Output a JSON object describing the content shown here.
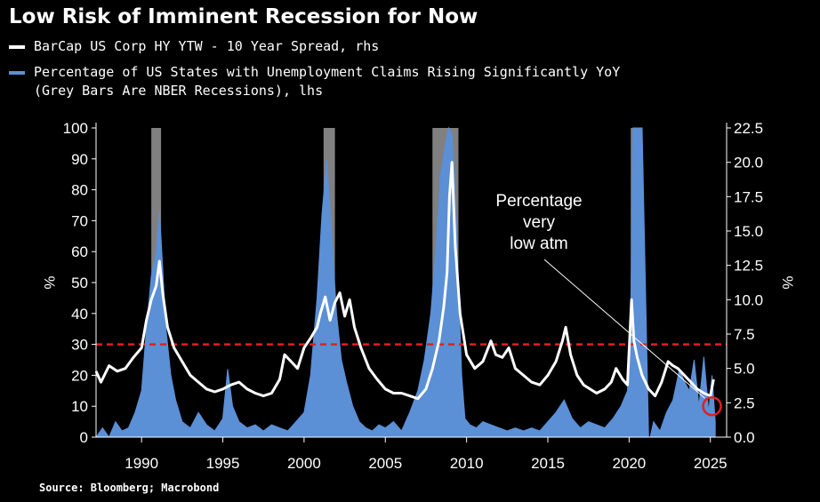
{
  "title": "Low Risk of Imminent Recession for Now",
  "legend": {
    "series1": "BarCap US Corp HY YTW - 10 Year Spread, rhs",
    "series2_line1": "Percentage of US States with Unemployment Claims Rising Significantly YoY",
    "series2_line2": "(Grey Bars Are NBER Recessions), lhs"
  },
  "source": "Source: Bloomberg; Macrobond",
  "colors": {
    "background": "#000000",
    "spread_line": "#ffffff",
    "states_area": "#5b8fd6",
    "recession_bars": "#808080",
    "threshold": "#e02020",
    "circle": "#e02020"
  },
  "chart_data": {
    "type": "area",
    "x_ticks": [
      "1990",
      "1995",
      "2000",
      "2005",
      "2010",
      "2015",
      "2020",
      "2025"
    ],
    "xlim": [
      1987.2,
      2026.0
    ],
    "left_axis": {
      "unit": "%",
      "ylim": [
        0,
        100
      ],
      "ticks": [
        "0",
        "10",
        "20",
        "30",
        "40",
        "50",
        "60",
        "70",
        "80",
        "90",
        "100"
      ]
    },
    "right_axis": {
      "unit": "%",
      "ylim": [
        0,
        22.5
      ],
      "ticks": [
        "0.0",
        "2.5",
        "5.0",
        "7.5",
        "10.0",
        "12.5",
        "15.0",
        "17.5",
        "20.0",
        "22.5"
      ]
    },
    "recessions": [
      [
        1990.6,
        1991.2
      ],
      [
        2001.2,
        2001.9
      ],
      [
        2007.9,
        2009.5
      ],
      [
        2020.1,
        2020.4
      ]
    ],
    "threshold_left": 30,
    "series": [
      {
        "name": "Percentage of US States with Unemployment Claims Rising Significantly YoY",
        "axis": "left",
        "style": "area",
        "x": [
          1987.2,
          1987.6,
          1988.0,
          1988.4,
          1988.8,
          1989.2,
          1989.6,
          1990.0,
          1990.3,
          1990.6,
          1990.9,
          1991.1,
          1991.3,
          1991.5,
          1991.8,
          1992.1,
          1992.5,
          1993.0,
          1993.5,
          1994.0,
          1994.5,
          1995.0,
          1995.3,
          1995.6,
          1996.0,
          1996.5,
          1997.0,
          1997.5,
          1998.0,
          1998.5,
          1999.0,
          1999.5,
          2000.0,
          2000.4,
          2000.8,
          2001.1,
          2001.4,
          2001.7,
          2002.0,
          2002.3,
          2002.6,
          2003.0,
          2003.4,
          2003.8,
          2004.2,
          2004.6,
          2005.0,
          2005.5,
          2006.0,
          2006.5,
          2007.0,
          2007.4,
          2007.8,
          2008.1,
          2008.4,
          2008.7,
          2008.9,
          2009.1,
          2009.3,
          2009.5,
          2009.7,
          2009.9,
          2010.2,
          2010.6,
          2011.0,
          2011.5,
          2012.0,
          2012.5,
          2013.0,
          2013.5,
          2014.0,
          2014.5,
          2015.0,
          2015.5,
          2016.0,
          2016.5,
          2017.0,
          2017.5,
          2018.0,
          2018.5,
          2019.0,
          2019.5,
          2019.9,
          2020.1,
          2020.25,
          2020.4,
          2020.8,
          2021.2,
          2021.3,
          2021.5,
          2021.9,
          2022.3,
          2022.7,
          2023.1,
          2023.4,
          2023.7,
          2024.0,
          2024.3,
          2024.6,
          2024.9,
          2025.1,
          2025.3
        ],
        "values": [
          0,
          3,
          0,
          5,
          2,
          3,
          8,
          15,
          35,
          52,
          60,
          73,
          55,
          35,
          20,
          12,
          5,
          3,
          8,
          4,
          2,
          6,
          22,
          10,
          5,
          3,
          4,
          2,
          4,
          3,
          2,
          5,
          8,
          20,
          45,
          72,
          90,
          65,
          40,
          25,
          18,
          10,
          5,
          3,
          2,
          4,
          3,
          5,
          2,
          8,
          15,
          25,
          40,
          60,
          85,
          95,
          100,
          98,
          80,
          50,
          20,
          6,
          4,
          3,
          5,
          4,
          3,
          2,
          3,
          2,
          3,
          2,
          5,
          8,
          12,
          6,
          3,
          5,
          4,
          3,
          6,
          10,
          15,
          40,
          100,
          100,
          100,
          0,
          0,
          5,
          2,
          8,
          12,
          22,
          18,
          15,
          25,
          10,
          26,
          8,
          20,
          5
        ]
      },
      {
        "name": "BarCap US Corp HY YTW - 10 Year Spread",
        "axis": "right",
        "style": "line",
        "x": [
          1987.2,
          1987.5,
          1988.0,
          1988.5,
          1989.0,
          1989.5,
          1990.0,
          1990.3,
          1990.6,
          1990.9,
          1991.1,
          1991.3,
          1991.6,
          1992.0,
          1992.5,
          1993.0,
          1993.5,
          1994.0,
          1994.5,
          1995.0,
          1995.5,
          1996.0,
          1996.5,
          1997.0,
          1997.5,
          1998.0,
          1998.5,
          1998.8,
          1999.2,
          1999.6,
          2000.0,
          2000.4,
          2000.8,
          2001.0,
          2001.3,
          2001.6,
          2001.9,
          2002.2,
          2002.5,
          2002.8,
          2003.1,
          2003.5,
          2004.0,
          2004.5,
          2005.0,
          2005.5,
          2006.0,
          2006.5,
          2007.0,
          2007.5,
          2007.9,
          2008.3,
          2008.6,
          2008.8,
          2008.95,
          2009.1,
          2009.3,
          2009.6,
          2010.0,
          2010.5,
          2011.0,
          2011.5,
          2011.8,
          2012.2,
          2012.6,
          2013.0,
          2013.5,
          2014.0,
          2014.5,
          2015.0,
          2015.5,
          2015.9,
          2016.1,
          2016.4,
          2016.8,
          2017.2,
          2017.6,
          2018.0,
          2018.5,
          2018.9,
          2019.2,
          2019.6,
          2019.9,
          2020.15,
          2020.3,
          2020.5,
          2020.8,
          2021.2,
          2021.6,
          2022.0,
          2022.4,
          2022.7,
          2023.0,
          2023.4,
          2023.8,
          2024.2,
          2024.6,
          2025.0,
          2025.2
        ],
        "values": [
          4.8,
          4.0,
          5.2,
          4.8,
          5.0,
          5.8,
          6.5,
          8.5,
          10.0,
          11.0,
          12.8,
          10.5,
          8.0,
          6.5,
          5.5,
          4.5,
          4.0,
          3.5,
          3.3,
          3.5,
          3.8,
          4.0,
          3.5,
          3.2,
          3.0,
          3.2,
          4.2,
          6.0,
          5.5,
          5.0,
          6.5,
          7.2,
          8.0,
          9.0,
          10.2,
          8.5,
          9.8,
          10.5,
          8.8,
          10.0,
          8.0,
          6.5,
          5.0,
          4.2,
          3.5,
          3.2,
          3.2,
          3.0,
          2.8,
          3.5,
          5.0,
          7.0,
          9.5,
          12.0,
          17.5,
          20.0,
          14.0,
          9.0,
          6.0,
          5.0,
          5.5,
          7.0,
          6.0,
          5.8,
          6.5,
          5.0,
          4.5,
          4.0,
          3.8,
          4.5,
          5.5,
          7.0,
          8.0,
          6.0,
          4.5,
          3.8,
          3.5,
          3.2,
          3.5,
          4.0,
          5.0,
          4.2,
          3.8,
          10.0,
          7.0,
          5.8,
          4.5,
          3.5,
          3.0,
          4.0,
          5.5,
          5.2,
          5.0,
          4.5,
          4.0,
          3.5,
          3.2,
          3.0,
          4.2
        ]
      }
    ],
    "annotation": {
      "lines": [
        "Percentage",
        "very",
        "low atm"
      ],
      "target_x": 2025.1,
      "target_left": 10
    }
  }
}
